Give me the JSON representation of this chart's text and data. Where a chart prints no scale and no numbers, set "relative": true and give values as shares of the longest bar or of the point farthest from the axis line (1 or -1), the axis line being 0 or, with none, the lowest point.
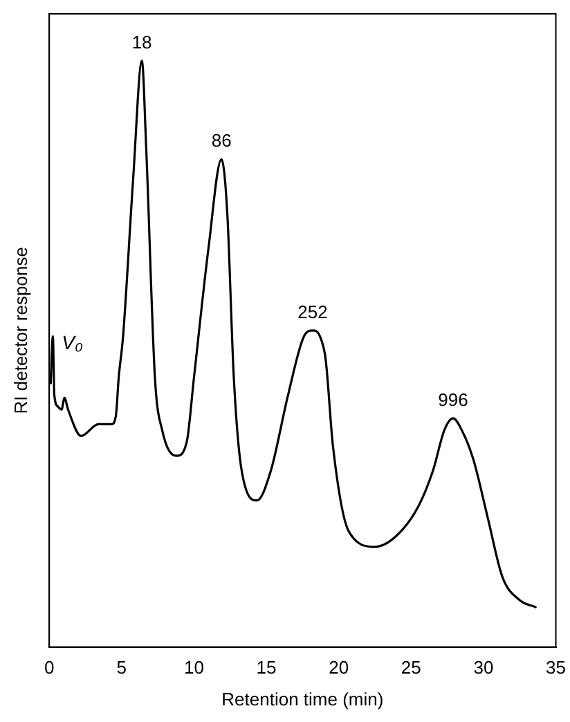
{
  "chart_data": {
    "type": "line",
    "relative": true,
    "xlabel": "Retention time (min)",
    "ylabel": "RI detector response",
    "xlim": [
      0,
      35
    ],
    "xticks": [
      0,
      5,
      10,
      15,
      20,
      25,
      30,
      35
    ],
    "grid": false,
    "legend": false,
    "marker": "none",
    "line_style": "solid",
    "x": [
      0.1,
      0.25,
      0.35,
      0.6,
      0.85,
      1.05,
      1.3,
      2.2,
      3.4,
      4.3,
      4.6,
      4.8,
      5.1,
      5.8,
      6.4,
      6.7,
      7.3,
      7.8,
      8.8,
      9.5,
      10.0,
      11.0,
      11.9,
      12.3,
      12.75,
      13.3,
      14.35,
      15.3,
      16.5,
      17.6,
      18.2,
      18.7,
      19.1,
      19.6,
      20.7,
      22.5,
      24.0,
      25.5,
      26.5,
      27.3,
      27.9,
      28.5,
      29.3,
      30.3,
      31.3,
      32.5,
      33.6
    ],
    "series": [
      {
        "color": "#000000",
        "values": [
          0.45,
          0.53,
          0.43,
          0.41,
          0.405,
          0.425,
          0.405,
          0.36,
          0.38,
          0.38,
          0.394,
          0.46,
          0.53,
          0.8,
          1.0,
          0.85,
          0.46,
          0.37,
          0.326,
          0.35,
          0.46,
          0.68,
          0.832,
          0.74,
          0.46,
          0.3,
          0.25,
          0.3,
          0.43,
          0.53,
          0.54,
          0.53,
          0.49,
          0.343,
          0.197,
          0.171,
          0.19,
          0.24,
          0.3,
          0.37,
          0.39,
          0.37,
          0.32,
          0.22,
          0.12,
          0.08,
          0.068
        ]
      }
    ],
    "annotations": [
      {
        "text": "18",
        "x": 6.4,
        "y": 1.0
      },
      {
        "text": "86",
        "x": 11.9,
        "y": 0.832
      },
      {
        "text": "252",
        "x": 18.2,
        "y": 0.54
      },
      {
        "text": "996",
        "x": 27.9,
        "y": 0.39
      },
      "V₀"
    ]
  }
}
